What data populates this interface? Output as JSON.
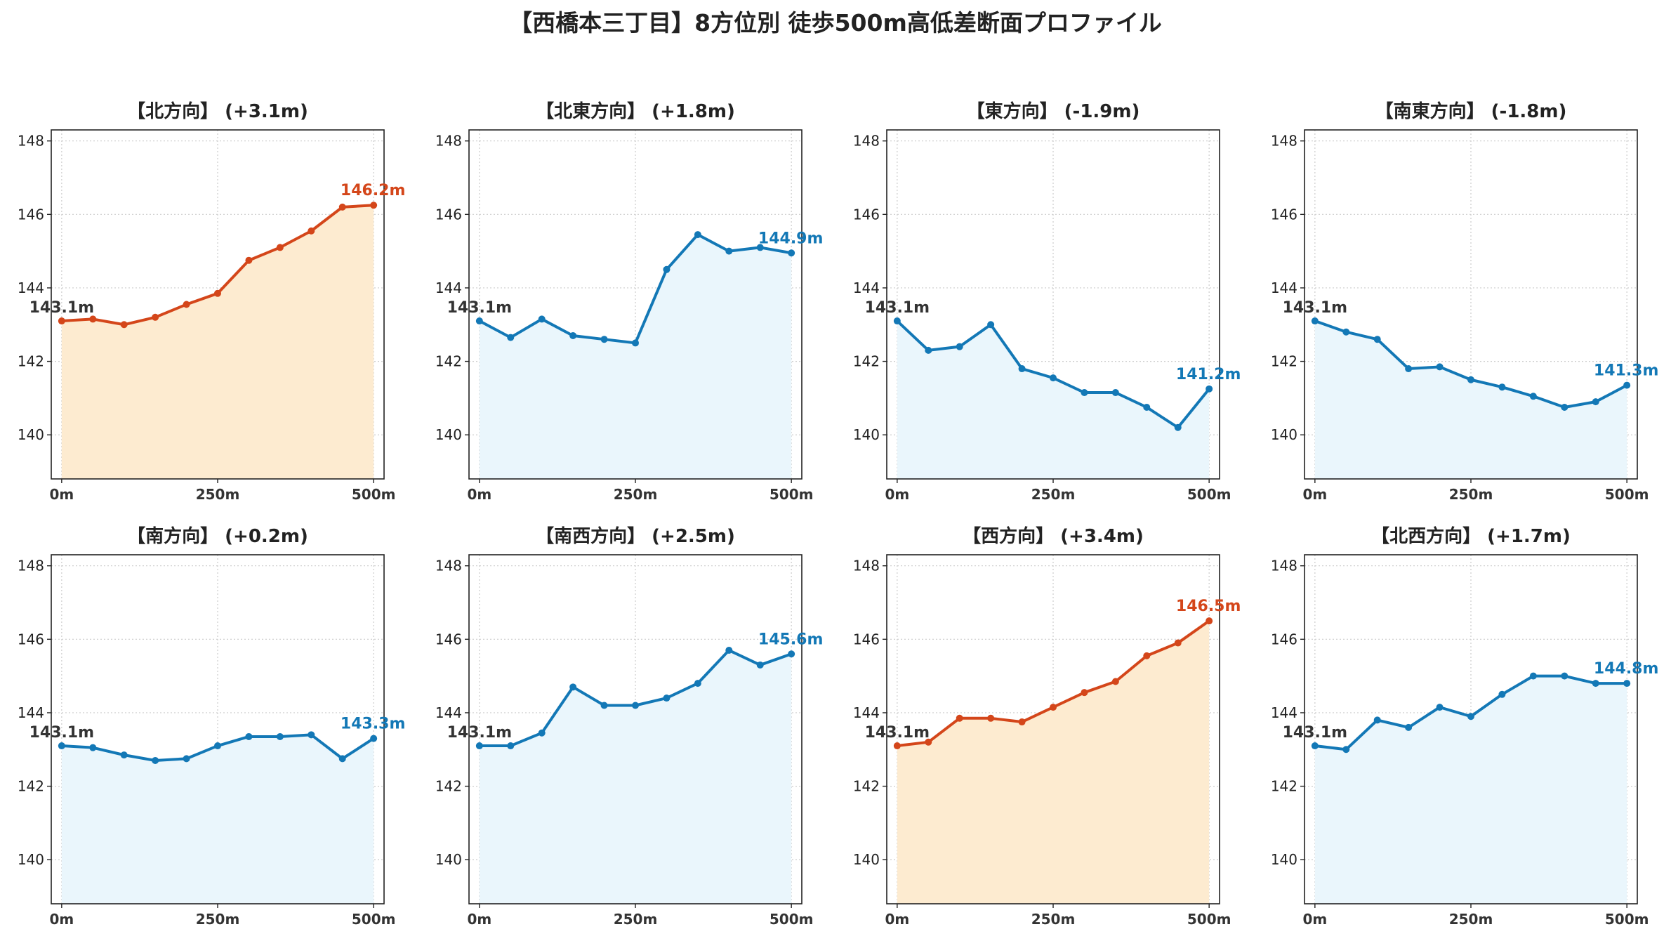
{
  "title": "【西橋本三丁目】8方位別 徒歩500m高低差断面プロファイル",
  "colors": {
    "up_line": "#d4461a",
    "up_fill": "#fdebd0",
    "flat_line": "#1378b6",
    "flat_fill": "#eaf6fc",
    "start_label": "#333333",
    "grid": "#cccccc"
  },
  "chart_data": [
    {
      "type": "line",
      "title": "【北方向】 (+3.1m)",
      "style": "up",
      "x": [
        0,
        50,
        100,
        150,
        200,
        250,
        300,
        350,
        400,
        450,
        500
      ],
      "y": [
        143.1,
        143.15,
        143.0,
        143.2,
        143.55,
        143.85,
        144.75,
        145.1,
        145.55,
        146.2,
        146.25
      ],
      "start_label": "143.1m",
      "end_label": "146.2m",
      "xticks": [
        "0m",
        "250m",
        "500m"
      ],
      "yticks": [
        140,
        142,
        144,
        146,
        148
      ],
      "ylim": [
        138.8,
        148.3
      ],
      "grid": true
    },
    {
      "type": "line",
      "title": "【北東方向】 (+1.8m)",
      "style": "flat",
      "x": [
        0,
        50,
        100,
        150,
        200,
        250,
        300,
        350,
        400,
        450,
        500
      ],
      "y": [
        143.1,
        142.65,
        143.15,
        142.7,
        142.6,
        142.5,
        144.5,
        145.45,
        145.0,
        145.1,
        144.95
      ],
      "start_label": "143.1m",
      "end_label": "144.9m",
      "xticks": [
        "0m",
        "250m",
        "500m"
      ],
      "yticks": [
        140,
        142,
        144,
        146,
        148
      ],
      "ylim": [
        138.8,
        148.3
      ],
      "grid": true
    },
    {
      "type": "line",
      "title": "【東方向】 (-1.9m)",
      "style": "flat",
      "x": [
        0,
        50,
        100,
        150,
        200,
        250,
        300,
        350,
        400,
        450,
        500
      ],
      "y": [
        143.1,
        142.3,
        142.4,
        143.0,
        141.8,
        141.55,
        141.15,
        141.15,
        140.75,
        140.2,
        141.25
      ],
      "start_label": "143.1m",
      "end_label": "141.2m",
      "xticks": [
        "0m",
        "250m",
        "500m"
      ],
      "yticks": [
        140,
        142,
        144,
        146,
        148
      ],
      "ylim": [
        138.8,
        148.3
      ],
      "grid": true
    },
    {
      "type": "line",
      "title": "【南東方向】 (-1.8m)",
      "style": "flat",
      "x": [
        0,
        50,
        100,
        150,
        200,
        250,
        300,
        350,
        400,
        450,
        500
      ],
      "y": [
        143.1,
        142.8,
        142.6,
        141.8,
        141.85,
        141.5,
        141.3,
        141.05,
        140.75,
        140.9,
        141.35
      ],
      "start_label": "143.1m",
      "end_label": "141.3m",
      "xticks": [
        "0m",
        "250m",
        "500m"
      ],
      "yticks": [
        140,
        142,
        144,
        146,
        148
      ],
      "ylim": [
        138.8,
        148.3
      ],
      "grid": true
    },
    {
      "type": "line",
      "title": "【南方向】 (+0.2m)",
      "style": "flat",
      "x": [
        0,
        50,
        100,
        150,
        200,
        250,
        300,
        350,
        400,
        450,
        500
      ],
      "y": [
        143.1,
        143.05,
        142.85,
        142.7,
        142.75,
        143.1,
        143.35,
        143.35,
        143.4,
        142.75,
        143.3
      ],
      "start_label": "143.1m",
      "end_label": "143.3m",
      "xticks": [
        "0m",
        "250m",
        "500m"
      ],
      "yticks": [
        140,
        142,
        144,
        146,
        148
      ],
      "ylim": [
        138.8,
        148.3
      ],
      "grid": true
    },
    {
      "type": "line",
      "title": "【南西方向】 (+2.5m)",
      "style": "flat",
      "x": [
        0,
        50,
        100,
        150,
        200,
        250,
        300,
        350,
        400,
        450,
        500
      ],
      "y": [
        143.1,
        143.1,
        143.45,
        144.7,
        144.2,
        144.2,
        144.4,
        144.8,
        145.7,
        145.3,
        145.6
      ],
      "start_label": "143.1m",
      "end_label": "145.6m",
      "xticks": [
        "0m",
        "250m",
        "500m"
      ],
      "yticks": [
        140,
        142,
        144,
        146,
        148
      ],
      "ylim": [
        138.8,
        148.3
      ],
      "grid": true
    },
    {
      "type": "line",
      "title": "【西方向】 (+3.4m)",
      "style": "up",
      "x": [
        0,
        50,
        100,
        150,
        200,
        250,
        300,
        350,
        400,
        450,
        500
      ],
      "y": [
        143.1,
        143.2,
        143.85,
        143.85,
        143.75,
        144.15,
        144.55,
        144.85,
        145.55,
        145.9,
        146.5
      ],
      "start_label": "143.1m",
      "end_label": "146.5m",
      "xticks": [
        "0m",
        "250m",
        "500m"
      ],
      "yticks": [
        140,
        142,
        144,
        146,
        148
      ],
      "ylim": [
        138.8,
        148.3
      ],
      "grid": true
    },
    {
      "type": "line",
      "title": "【北西方向】 (+1.7m)",
      "style": "flat",
      "x": [
        0,
        50,
        100,
        150,
        200,
        250,
        300,
        350,
        400,
        450,
        500
      ],
      "y": [
        143.1,
        143.0,
        143.8,
        143.6,
        144.15,
        143.9,
        144.5,
        145.0,
        145.0,
        144.8,
        144.8
      ],
      "start_label": "143.1m",
      "end_label": "144.8m",
      "xticks": [
        "0m",
        "250m",
        "500m"
      ],
      "yticks": [
        140,
        142,
        144,
        146,
        148
      ],
      "ylim": [
        138.8,
        148.3
      ],
      "grid": true
    }
  ]
}
